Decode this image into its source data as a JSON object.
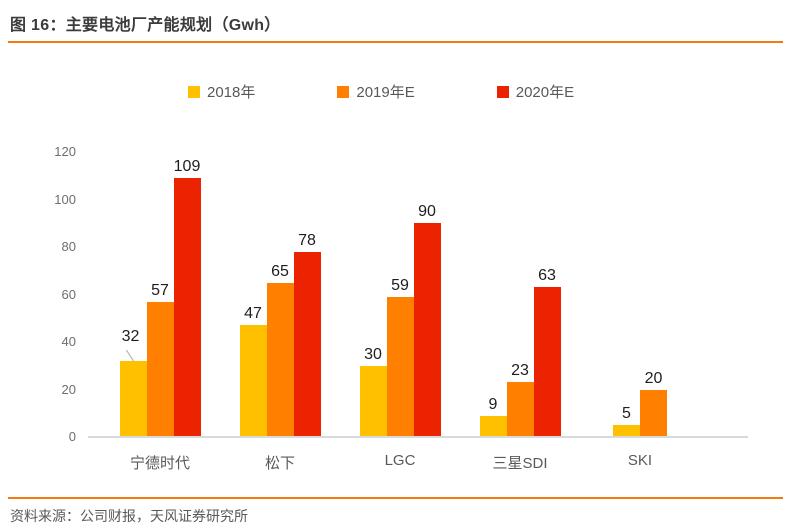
{
  "header": {
    "title": "图 16：主要电池厂产能规划（Gwh）"
  },
  "footer": {
    "source": "资料来源：公司财报，天风证券研究所"
  },
  "colors": {
    "accent_line": "#F5790F",
    "axis_line": "#D9D9D9",
    "series_2018": "#FFC000",
    "series_2019e": "#FF8000",
    "series_2020e": "#EB2301"
  },
  "chart_data": {
    "type": "bar",
    "title": "主要电池厂产能规划（Gwh）",
    "categories": [
      "宁德时代",
      "松下",
      "LGC",
      "三星SDI",
      "SKI"
    ],
    "series": [
      {
        "name": "2018年",
        "color": "#FFC000",
        "values": [
          32,
          47,
          30,
          9,
          5
        ]
      },
      {
        "name": "2019年E",
        "color": "#FF8000",
        "values": [
          57,
          65,
          59,
          23,
          20
        ]
      },
      {
        "name": "2020年E",
        "color": "#EB2301",
        "values": [
          109,
          78,
          90,
          63,
          null
        ]
      }
    ],
    "xlabel": "",
    "ylabel": "",
    "ylim": [
      0,
      120
    ],
    "yticks": [
      0,
      20,
      40,
      60,
      80,
      100,
      120
    ],
    "grid": false,
    "legend_position": "top",
    "value_labels": true,
    "callouts": [
      [
        0,
        0
      ]
    ]
  }
}
